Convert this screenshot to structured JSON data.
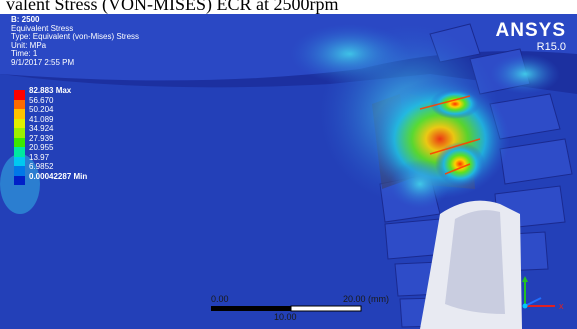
{
  "caption": "valent Stress (VON-MISES) ECR at 2500rpm",
  "header": {
    "title": "B: 2500",
    "result": "Equivalent Stress",
    "type": "Type: Equivalent (von-Mises) Stress",
    "unit": "Unit: MPa",
    "time": "Time: 1",
    "date": "9/1/2017 2:55 PM"
  },
  "legend": {
    "labels": [
      "82.883 Max",
      "56.670",
      "50.204",
      "41.089",
      "34.924",
      "27.939",
      "20.955",
      "13.97",
      "6.9852",
      "0.00042287 Min"
    ],
    "colors": [
      "#ff0000",
      "#ff6a00",
      "#ffc300",
      "#e0f000",
      "#9cf000",
      "#3ce800",
      "#00e8a0",
      "#00c8f0",
      "#0078e8",
      "#0020c8"
    ]
  },
  "logo": {
    "brand": "ANSYS",
    "version": "R15.0"
  },
  "scale_bar": {
    "left_label": "0.00",
    "right_label": "20.00 (mm)",
    "mid_label": "10.00"
  }
}
